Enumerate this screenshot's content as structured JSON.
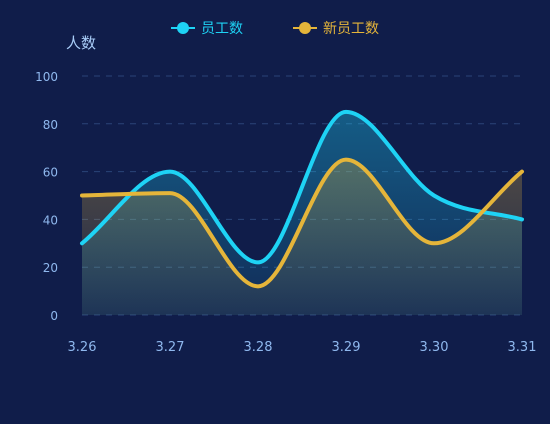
{
  "chart_data": {
    "type": "line",
    "smooth": true,
    "categories": [
      "3.26",
      "3.27",
      "3.28",
      "3.29",
      "3.30",
      "3.31"
    ],
    "ylabel": "人数",
    "ylim": [
      0,
      100
    ],
    "yticks": [
      0,
      20,
      40,
      60,
      80,
      100
    ],
    "grid": true,
    "legend_position": "top-center",
    "series": [
      {
        "name": "员工数",
        "values": [
          30,
          60,
          22,
          85,
          50,
          40
        ],
        "color": "#1ed3f5",
        "area": true
      },
      {
        "name": "新员工数",
        "values": [
          50,
          51,
          12,
          65,
          30,
          60
        ],
        "color": "#e5b53a",
        "area": true
      }
    ]
  },
  "colors": {
    "background": "#101d4a",
    "axis_text": "#8fb8ee",
    "ylabel_text": "#a9cdf8",
    "grid": "#2a4478"
  }
}
